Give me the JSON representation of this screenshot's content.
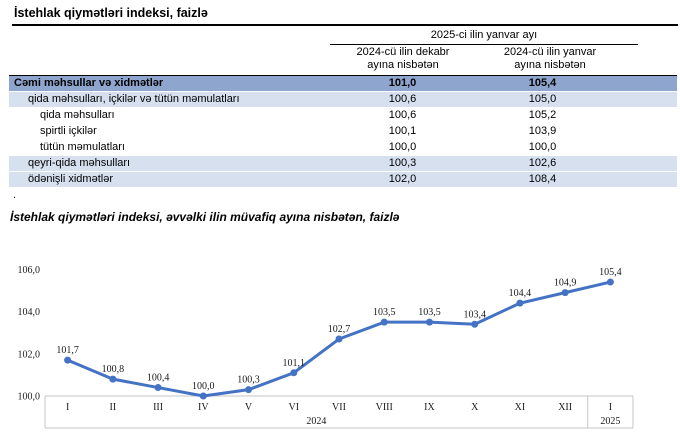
{
  "title": "İstehlak qiymətləri indeksi, faizlə",
  "table": {
    "span_header": "2025-ci ilin yanvar ayı",
    "col_headers": [
      {
        "line1": "2024-cü ilin dekabr",
        "line2": "ayına nisbətən"
      },
      {
        "line1": "2024-cü ilin yanvar",
        "line2": "ayına nisbətən"
      }
    ],
    "rows": [
      {
        "label": "Cəmi məhsullar və xidmətlər",
        "v1": "101,0",
        "v2": "105,4",
        "style": "total",
        "indent": 0
      },
      {
        "label": "qida məhsulları, içkilər və tütün məmulatları",
        "v1": "100,6",
        "v2": "105,0",
        "style": "alt",
        "indent": 1
      },
      {
        "label": "qida məhsulları",
        "v1": "100,6",
        "v2": "105,2",
        "style": "plain",
        "indent": 2
      },
      {
        "label": "spirtli içkilər",
        "v1": "100,1",
        "v2": "103,9",
        "style": "plain",
        "indent": 2
      },
      {
        "label": "tütün məmulatları",
        "v1": "100,0",
        "v2": "100,0",
        "style": "plain",
        "indent": 2
      },
      {
        "label": "qeyri-qida məhsulları",
        "v1": "100,3",
        "v2": "102,6",
        "style": "alt",
        "indent": 1
      },
      {
        "label": "ödənişli xidmətlər",
        "v1": "102,0",
        "v2": "108,4",
        "style": "alt",
        "indent": 1
      }
    ]
  },
  "footnote_dot": ".",
  "chart_title": "İstehlak qiymətləri indeksi, əvvəlki ilin müvafiq ayına nisbətən, faizlə",
  "chart_data": {
    "type": "line",
    "title": "İstehlak qiymətləri indeksi, əvvəlki ilin müvafiq ayına nisbətən, faizlə",
    "categories": [
      "I",
      "II",
      "III",
      "IV",
      "V",
      "VI",
      "VII",
      "VIII",
      "IX",
      "X",
      "XI",
      "XII",
      "I"
    ],
    "year_groups": [
      {
        "label": "2024",
        "span": 12
      },
      {
        "label": "2025",
        "span": 1
      }
    ],
    "values": [
      101.7,
      100.8,
      100.4,
      100.0,
      100.3,
      101.1,
      102.7,
      103.5,
      103.5,
      103.4,
      104.4,
      104.9,
      105.4
    ],
    "point_labels": [
      "101,7",
      "100,8",
      "100,4",
      "100,0",
      "100,3",
      "101,1",
      "102,7",
      "103,5",
      "103,5",
      "103,4",
      "104,4",
      "104,9",
      "105,4"
    ],
    "y_ticks": [
      "100,0",
      "102,0",
      "104,0",
      "106,0"
    ],
    "ylim": [
      100.0,
      106.7
    ],
    "grid": false,
    "legend": "none",
    "line_color": "#4472C4",
    "axis_color": "#C6C6C6"
  },
  "colors": {
    "total_row_bg": "#8EA5CE",
    "alt_row_bg": "#D6E0EF",
    "line_blue": "#4472C4"
  }
}
